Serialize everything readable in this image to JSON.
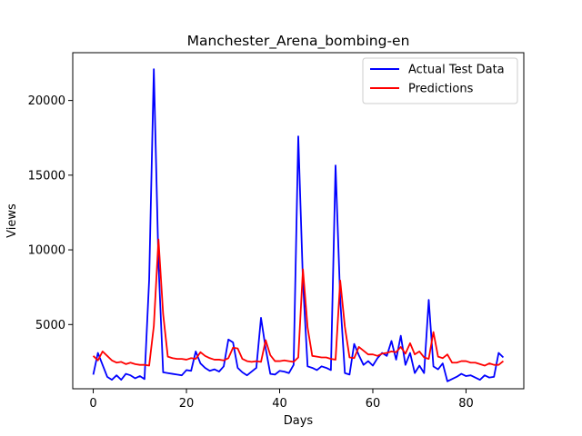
{
  "chart_data": {
    "type": "line",
    "title": "Manchester_Arena_bombing-en",
    "xlabel": "Days",
    "ylabel": "Views",
    "xlim": [
      -4.4,
      92.4
    ],
    "ylim": [
      700,
      23200
    ],
    "x_ticks": [
      0,
      20,
      40,
      60,
      80
    ],
    "y_ticks": [
      5000,
      10000,
      15000,
      20000
    ],
    "grid": false,
    "legend": "top-right",
    "x": [
      0,
      1,
      2,
      3,
      4,
      5,
      6,
      7,
      8,
      9,
      10,
      11,
      12,
      13,
      14,
      15,
      16,
      17,
      18,
      19,
      20,
      21,
      22,
      23,
      24,
      25,
      26,
      27,
      28,
      29,
      30,
      31,
      32,
      33,
      34,
      35,
      36,
      37,
      38,
      39,
      40,
      41,
      42,
      43,
      44,
      45,
      46,
      47,
      48,
      49,
      50,
      51,
      52,
      53,
      54,
      55,
      56,
      57,
      58,
      59,
      60,
      61,
      62,
      63,
      64,
      65,
      66,
      67,
      68,
      69,
      70,
      71,
      72,
      73,
      74,
      75,
      76,
      77,
      78,
      79,
      80,
      81,
      82,
      83,
      84,
      85,
      86,
      87,
      88
    ],
    "series": [
      {
        "name": "Actual Test Data",
        "color": "#0000ff",
        "values": [
          1650,
          3100,
          2300,
          1500,
          1300,
          1600,
          1300,
          1700,
          1600,
          1400,
          1550,
          1350,
          8000,
          22100,
          9100,
          1800,
          1750,
          1700,
          1650,
          1600,
          1950,
          1900,
          3200,
          2400,
          2100,
          1900,
          2000,
          1850,
          2200,
          4000,
          3800,
          2100,
          1800,
          1600,
          1850,
          2100,
          5450,
          3400,
          1700,
          1650,
          1900,
          1850,
          1750,
          2300,
          17600,
          7900,
          2200,
          2100,
          1950,
          2200,
          2100,
          1950,
          15650,
          6700,
          1750,
          1650,
          3700,
          2950,
          2300,
          2550,
          2250,
          2750,
          3100,
          2900,
          3900,
          2650,
          4250,
          2300,
          3100,
          1750,
          2250,
          1750,
          6650,
          2200,
          2000,
          2400,
          1200,
          1350,
          1500,
          1700,
          1550,
          1600,
          1450,
          1300,
          1600,
          1450,
          1500,
          3100,
          2800
        ]
      },
      {
        "name": "Predictions",
        "color": "#ff0000",
        "values": [
          2900,
          2600,
          3200,
          2900,
          2600,
          2450,
          2500,
          2350,
          2450,
          2350,
          2300,
          2300,
          2250,
          4900,
          10700,
          5700,
          2850,
          2750,
          2700,
          2700,
          2650,
          2750,
          2700,
          3150,
          2900,
          2750,
          2650,
          2650,
          2600,
          2750,
          3450,
          3400,
          2700,
          2550,
          2500,
          2550,
          2500,
          3950,
          2950,
          2550,
          2550,
          2600,
          2550,
          2500,
          2800,
          8700,
          4800,
          2900,
          2850,
          2800,
          2800,
          2700,
          2650,
          7950,
          4850,
          2800,
          2750,
          3500,
          3250,
          3000,
          3000,
          2900,
          3050,
          3100,
          3200,
          3150,
          3500,
          3050,
          3750,
          3000,
          3200,
          2800,
          2700,
          4500,
          2850,
          2750,
          3000,
          2450,
          2450,
          2550,
          2550,
          2450,
          2450,
          2350,
          2250,
          2400,
          2300,
          2300,
          2550
        ]
      }
    ]
  }
}
